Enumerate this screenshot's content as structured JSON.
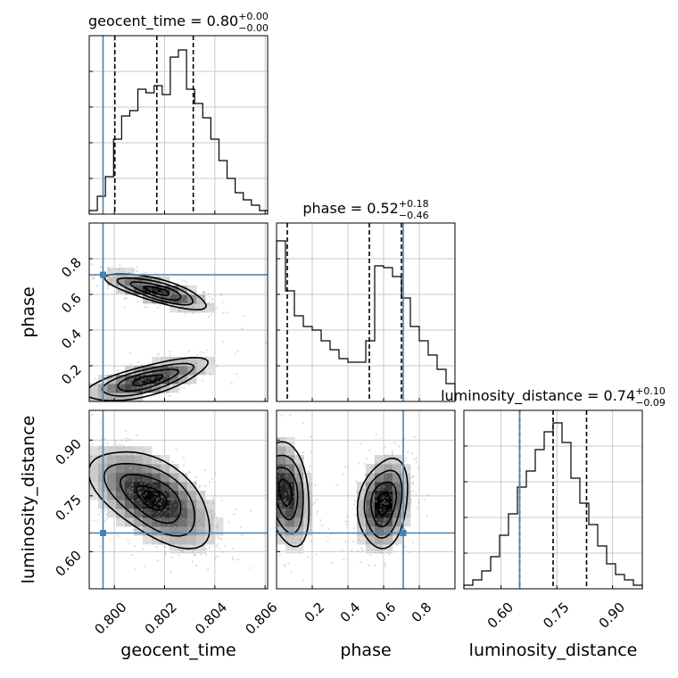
{
  "figure": {
    "type": "corner_plot"
  },
  "colors": {
    "truth": "#4682b4",
    "hist": "#000000",
    "grid": "#c8c8c8",
    "samples": "#9a9a9a"
  },
  "chart_data": {
    "type": "corner",
    "parameters": [
      {
        "name": "geocent_time",
        "label": "geocent_time",
        "range": [
          0.799,
          0.8061
        ],
        "ticks": [
          0.8,
          0.802,
          0.804,
          0.806
        ],
        "tick_labels": [
          "0.800",
          "0.802",
          "0.804",
          "0.806"
        ],
        "truth": 0.79955,
        "quantiles": [
          0.80002,
          0.80169,
          0.80314
        ],
        "title": {
          "main": "geocent_time = 0.80",
          "plus": "+0.00",
          "minus": "−0.00"
        },
        "hist_counts": [
          0.02,
          0.1,
          0.21,
          0.42,
          0.55,
          0.58,
          0.7,
          0.68,
          0.72,
          0.67,
          0.88,
          0.92,
          0.7,
          0.62,
          0.54,
          0.42,
          0.3,
          0.2,
          0.12,
          0.08,
          0.05,
          0.02
        ]
      },
      {
        "name": "phase",
        "label": "phase",
        "range": [
          0.0,
          1.0
        ],
        "ticks": [
          0.2,
          0.4,
          0.6,
          0.8
        ],
        "tick_labels": [
          "0.2",
          "0.4",
          "0.6",
          "0.8"
        ],
        "truth": 0.71,
        "quantiles": [
          0.06,
          0.52,
          0.7
        ],
        "title": {
          "main": "phase = 0.52",
          "plus": "+0.18",
          "minus": "−0.46"
        },
        "hist_counts": [
          0.9,
          0.62,
          0.48,
          0.42,
          0.4,
          0.34,
          0.29,
          0.24,
          0.22,
          0.22,
          0.34,
          0.76,
          0.75,
          0.7,
          0.58,
          0.42,
          0.34,
          0.26,
          0.18,
          0.1
        ]
      },
      {
        "name": "luminosity_distance",
        "label": "luminosity_distance",
        "range": [
          0.5,
          0.98
        ],
        "ticks": [
          0.6,
          0.75,
          0.9
        ],
        "tick_labels": [
          "0.60",
          "0.75",
          "0.90"
        ],
        "truth": 0.65,
        "quantiles": [
          0.65,
          0.74,
          0.83
        ],
        "title": {
          "main": "luminosity_distance = 0.74",
          "plus": "+0.10",
          "minus": "−0.09"
        },
        "hist_counts": [
          0.02,
          0.05,
          0.1,
          0.18,
          0.3,
          0.42,
          0.57,
          0.66,
          0.78,
          0.88,
          0.93,
          0.82,
          0.62,
          0.48,
          0.36,
          0.24,
          0.14,
          0.08,
          0.05,
          0.02
        ]
      }
    ],
    "pairs": [
      {
        "x": "geocent_time",
        "y": "phase",
        "clusters": [
          {
            "cx": 0.8017,
            "cy": 0.62,
            "sx": 0.001,
            "sy": 0.05,
            "rho": -0.75,
            "n": 500
          },
          {
            "cx": 0.8013,
            "cy": 0.12,
            "sx": 0.0012,
            "sy": 0.06,
            "rho": 0.7,
            "n": 460
          }
        ]
      },
      {
        "x": "geocent_time",
        "y": "luminosity_distance",
        "clusters": [
          {
            "cx": 0.8015,
            "cy": 0.745,
            "sx": 0.0012,
            "sy": 0.065,
            "rho": -0.55,
            "n": 900
          }
        ]
      },
      {
        "x": "phase",
        "y": "luminosity_distance",
        "clusters": [
          {
            "cx": 0.05,
            "cy": 0.76,
            "sx": 0.07,
            "sy": 0.07,
            "rho": -0.3,
            "n": 420
          },
          {
            "cx": 0.6,
            "cy": 0.73,
            "sx": 0.07,
            "sy": 0.06,
            "rho": 0.2,
            "n": 480
          }
        ]
      }
    ]
  }
}
